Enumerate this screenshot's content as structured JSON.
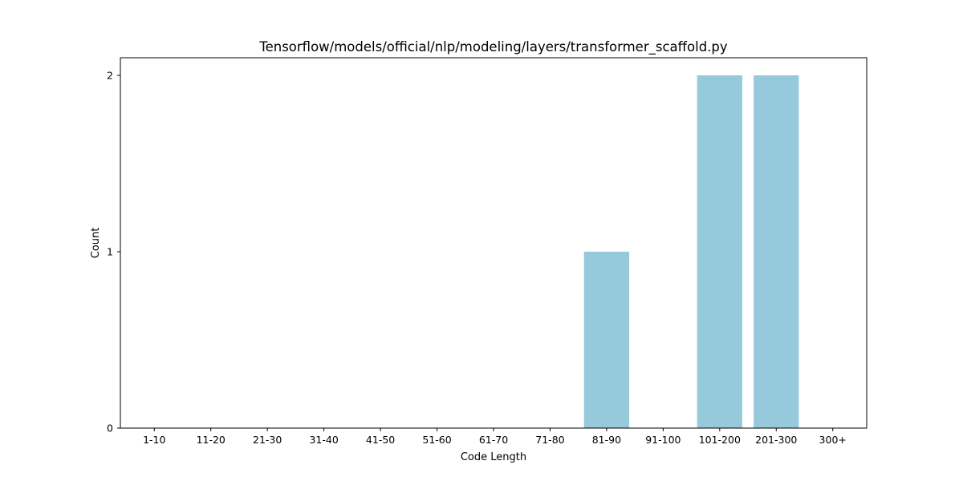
{
  "chart_data": {
    "type": "bar",
    "title": "Tensorflow/models/official/nlp/modeling/layers/transformer_scaffold.py",
    "xlabel": "Code Length",
    "ylabel": "Count",
    "categories": [
      "1-10",
      "11-20",
      "21-30",
      "31-40",
      "41-50",
      "51-60",
      "61-70",
      "71-80",
      "81-90",
      "91-100",
      "101-200",
      "201-300",
      "300+"
    ],
    "values": [
      0,
      0,
      0,
      0,
      0,
      0,
      0,
      0,
      1,
      0,
      2,
      2,
      0
    ],
    "yticks": [
      0,
      1,
      2
    ],
    "ylim": [
      0,
      2.1
    ],
    "grid": false,
    "legend": "none",
    "bar_color": "#96c9dc"
  }
}
